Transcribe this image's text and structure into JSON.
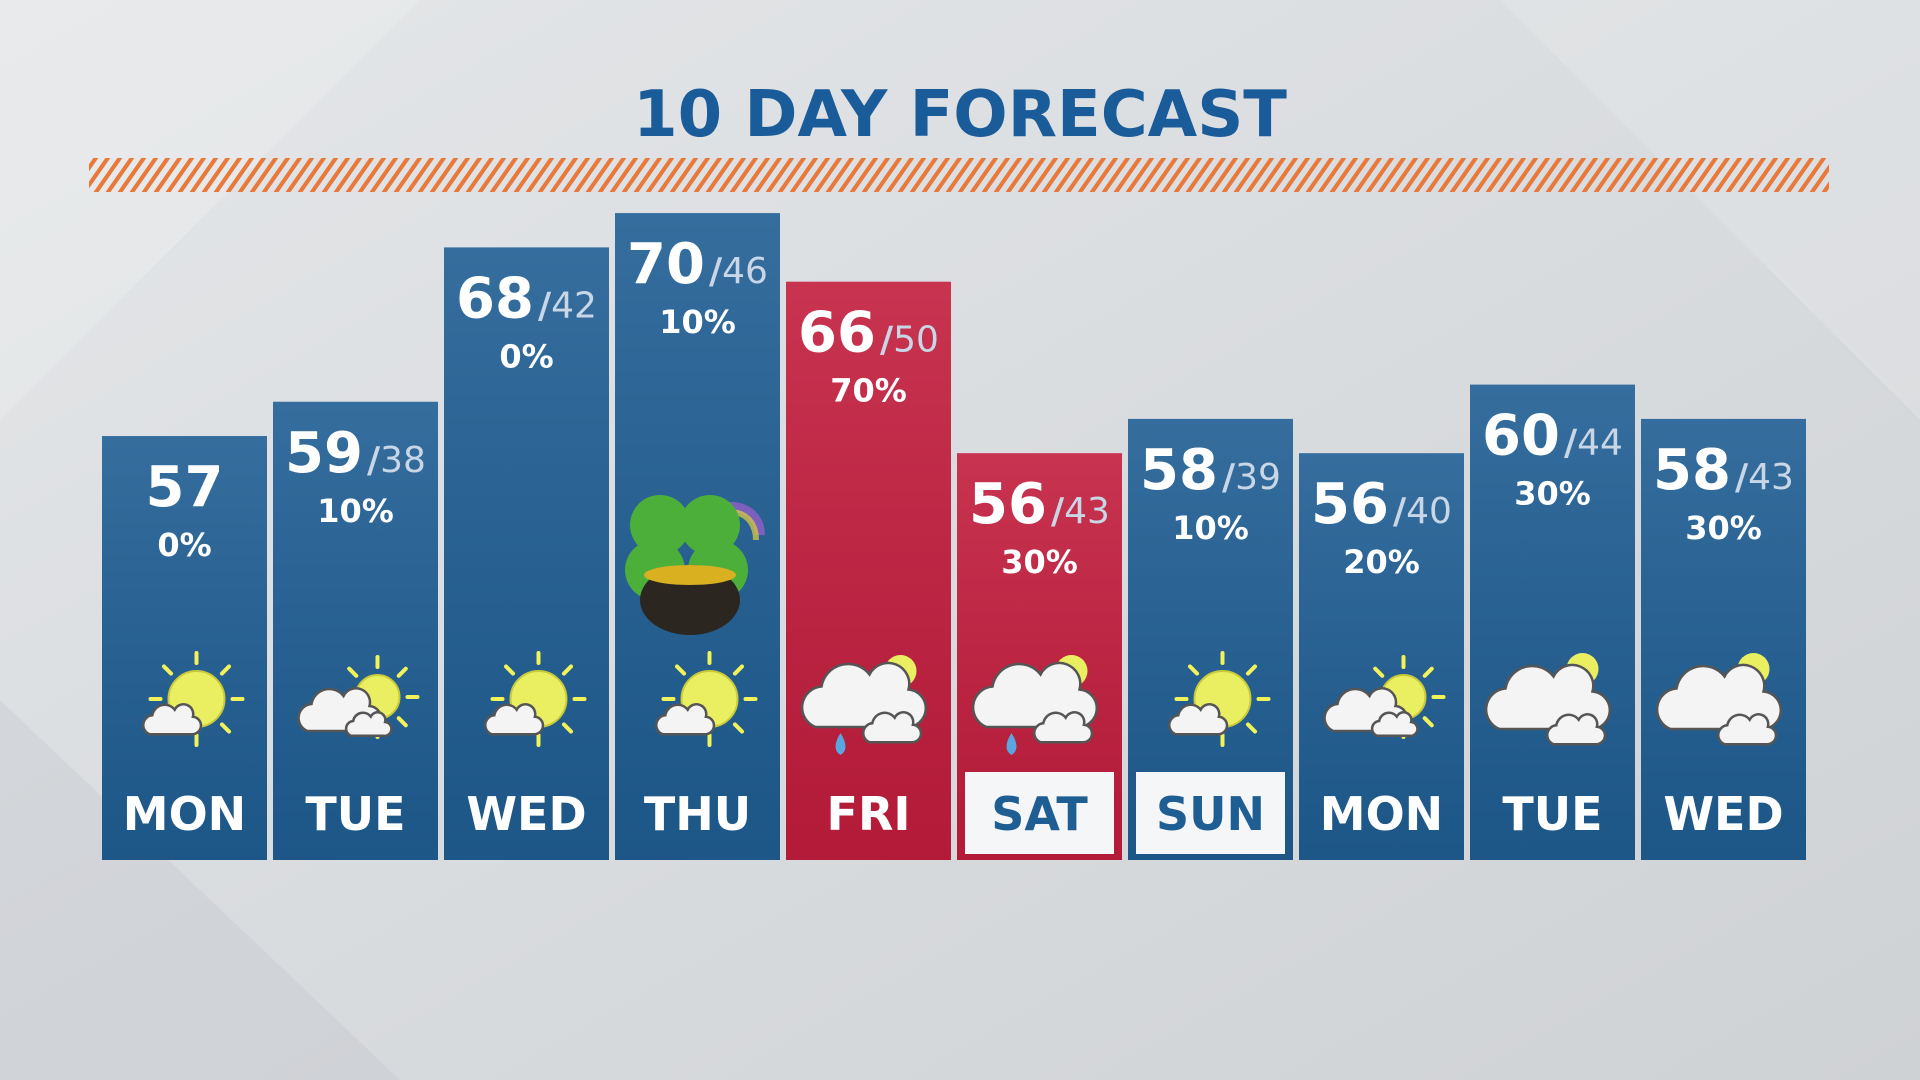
{
  "header": {
    "title": "10 DAY FORECAST"
  },
  "days": [
    {
      "day": "MON",
      "high": 57,
      "low": null,
      "precip": "0%",
      "icon": "mostly-sunny",
      "color": "#1f5e93",
      "boxed": false
    },
    {
      "day": "TUE",
      "high": 59,
      "low": 38,
      "precip": "10%",
      "icon": "partly-sunny",
      "color": "#1f5e93",
      "boxed": false
    },
    {
      "day": "WED",
      "high": 68,
      "low": 42,
      "precip": "0%",
      "icon": "mostly-sunny",
      "color": "#1f5e93",
      "boxed": false
    },
    {
      "day": "THU",
      "high": 70,
      "low": 46,
      "precip": "10%",
      "icon": "mostly-sunny",
      "color": "#1f5e93",
      "boxed": false
    },
    {
      "day": "FRI",
      "high": 66,
      "low": 50,
      "precip": "70%",
      "icon": "rain",
      "color": "#c21d3d",
      "boxed": false
    },
    {
      "day": "SAT",
      "high": 56,
      "low": 43,
      "precip": "30%",
      "icon": "rain",
      "color": "#c21d3d",
      "boxed": true
    },
    {
      "day": "SUN",
      "high": 58,
      "low": 39,
      "precip": "10%",
      "icon": "mostly-sunny",
      "color": "#1f5e93",
      "boxed": true
    },
    {
      "day": "MON",
      "high": 56,
      "low": 40,
      "precip": "20%",
      "icon": "partly-sunny",
      "color": "#1f5e93",
      "boxed": false
    },
    {
      "day": "TUE",
      "high": 60,
      "low": 44,
      "precip": "30%",
      "icon": "mostly-cloudy",
      "color": "#1f5e93",
      "boxed": false
    },
    {
      "day": "WED",
      "high": 58,
      "low": 43,
      "precip": "30%",
      "icon": "mostly-cloudy",
      "color": "#1f5e93",
      "boxed": false
    }
  ]
}
